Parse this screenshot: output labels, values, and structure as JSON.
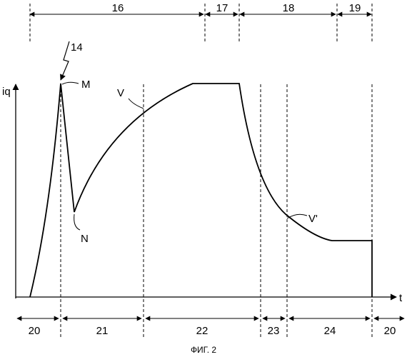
{
  "figure": {
    "caption": "ФИГ. 2",
    "axis": {
      "y_label": "iq",
      "x_label": "t"
    },
    "top_phases": [
      {
        "label": "16"
      },
      {
        "label": "17"
      },
      {
        "label": "18"
      },
      {
        "label": "19"
      }
    ],
    "bottom_phases": [
      {
        "label": "20"
      },
      {
        "label": "21"
      },
      {
        "label": "22"
      },
      {
        "label": "23"
      },
      {
        "label": "24"
      },
      {
        "label": "20"
      }
    ],
    "points": {
      "m": "M",
      "n": "N",
      "v": "V",
      "v_prime": "V'",
      "event": "14"
    }
  }
}
